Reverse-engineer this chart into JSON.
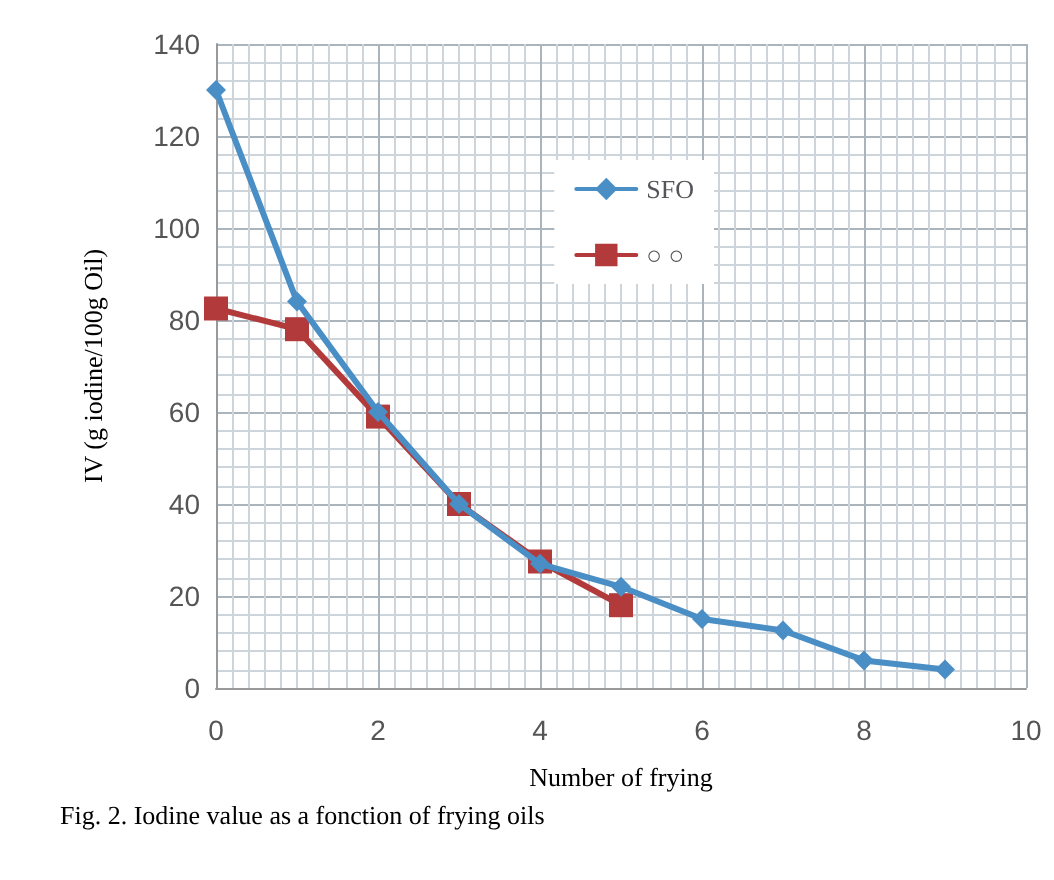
{
  "chart_data": {
    "type": "line",
    "xlabel": "Number of frying",
    "ylabel": "IV (g iodine/100g Oil)",
    "annotations": [
      "Fig. 2. Iodine value as a fonction of frying oils"
    ],
    "x": [
      0,
      1,
      2,
      3,
      4,
      5,
      6,
      7,
      8,
      9
    ],
    "series": [
      {
        "name": "SFO",
        "color": "#4a8ec6",
        "marker": "diamond",
        "values": [
          130,
          84,
          60,
          40,
          27,
          22,
          15,
          12.5,
          6,
          4
        ]
      },
      {
        "name": "○ ○",
        "color": "#b23a3a",
        "marker": "square",
        "x": [
          0,
          1,
          2,
          3,
          4,
          5
        ],
        "values": [
          82.5,
          78,
          59,
          40,
          27.5,
          18
        ]
      }
    ],
    "xlim": [
      0,
      10
    ],
    "xticks": [
      0,
      2,
      4,
      6,
      8,
      10
    ],
    "ylim": [
      0,
      140
    ],
    "yticks": [
      0,
      20,
      40,
      60,
      80,
      100,
      120,
      140
    ],
    "grid": true,
    "legend": "top right",
    "line_style": "solid"
  }
}
